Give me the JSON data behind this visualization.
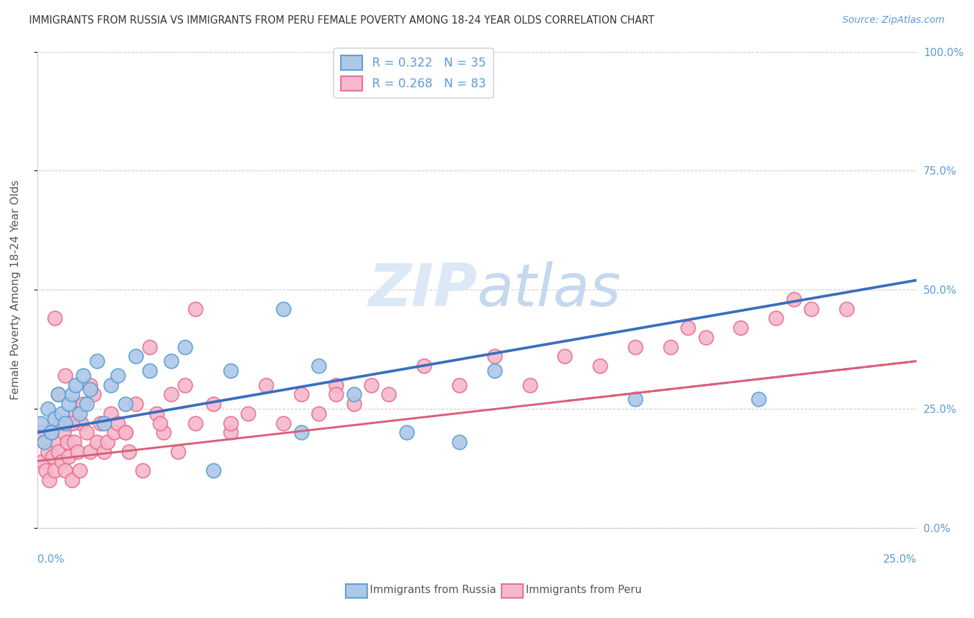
{
  "title": "IMMIGRANTS FROM RUSSIA VS IMMIGRANTS FROM PERU FEMALE POVERTY AMONG 18-24 YEAR OLDS CORRELATION CHART",
  "source": "Source: ZipAtlas.com",
  "ylabel": "Female Poverty Among 18-24 Year Olds",
  "xlim": [
    0.0,
    25.0
  ],
  "ylim": [
    0.0,
    100.0
  ],
  "yticks": [
    0,
    25,
    50,
    75,
    100
  ],
  "xticks": [
    0,
    5,
    10,
    15,
    20,
    25
  ],
  "russia_color": "#adc8e8",
  "russia_edge": "#5a9fd4",
  "peru_color": "#f5b8cc",
  "peru_edge": "#e8708c",
  "russia_line_color": "#3a6fbe",
  "peru_line_color": "#d9607a",
  "watermark_color": "#dce8f5",
  "russia_line_y0": 20.0,
  "russia_line_y1": 52.0,
  "peru_line_y0": 14.0,
  "peru_line_y1": 35.0,
  "russia_scatter_x": [
    0.1,
    0.2,
    0.3,
    0.4,
    0.5,
    0.6,
    0.7,
    0.8,
    0.9,
    1.0,
    1.1,
    1.2,
    1.3,
    1.4,
    1.5,
    1.7,
    1.9,
    2.1,
    2.3,
    2.5,
    2.8,
    3.2,
    3.8,
    4.2,
    5.5,
    7.0,
    7.5,
    8.0,
    9.0,
    10.5,
    12.0,
    13.0,
    17.0,
    20.5,
    5.0
  ],
  "russia_scatter_y": [
    22,
    18,
    25,
    20,
    23,
    28,
    24,
    22,
    26,
    28,
    30,
    24,
    32,
    26,
    29,
    35,
    22,
    30,
    32,
    26,
    36,
    33,
    35,
    38,
    33,
    46,
    20,
    34,
    28,
    20,
    18,
    33,
    27,
    27,
    12
  ],
  "peru_scatter_x": [
    0.1,
    0.15,
    0.2,
    0.25,
    0.3,
    0.35,
    0.4,
    0.45,
    0.5,
    0.55,
    0.6,
    0.65,
    0.7,
    0.75,
    0.8,
    0.85,
    0.9,
    0.95,
    1.0,
    1.05,
    1.1,
    1.15,
    1.2,
    1.25,
    1.3,
    1.4,
    1.5,
    1.6,
    1.7,
    1.8,
    1.9,
    2.0,
    2.1,
    2.2,
    2.3,
    2.5,
    2.6,
    2.8,
    3.0,
    3.2,
    3.4,
    3.6,
    3.8,
    4.0,
    4.2,
    4.5,
    5.0,
    5.5,
    6.0,
    6.5,
    7.0,
    7.5,
    8.0,
    8.5,
    9.0,
    9.5,
    10.0,
    11.0,
    12.0,
    13.0,
    14.0,
    15.0,
    16.0,
    17.0,
    18.0,
    18.5,
    19.0,
    20.0,
    21.0,
    21.5,
    22.0,
    23.0,
    4.5,
    3.5,
    2.5,
    1.5,
    1.0,
    0.8,
    0.6,
    0.4,
    0.5,
    5.5,
    8.5
  ],
  "peru_scatter_y": [
    20,
    14,
    18,
    12,
    16,
    10,
    20,
    15,
    12,
    18,
    16,
    22,
    14,
    20,
    12,
    18,
    15,
    22,
    10,
    18,
    24,
    16,
    12,
    22,
    26,
    20,
    16,
    28,
    18,
    22,
    16,
    18,
    24,
    20,
    22,
    20,
    16,
    26,
    12,
    38,
    24,
    20,
    28,
    16,
    30,
    22,
    26,
    20,
    24,
    30,
    22,
    28,
    24,
    30,
    26,
    30,
    28,
    34,
    30,
    36,
    30,
    36,
    34,
    38,
    38,
    42,
    40,
    42,
    44,
    48,
    46,
    46,
    46,
    22,
    20,
    30,
    22,
    32,
    28,
    20,
    44,
    22,
    28
  ]
}
